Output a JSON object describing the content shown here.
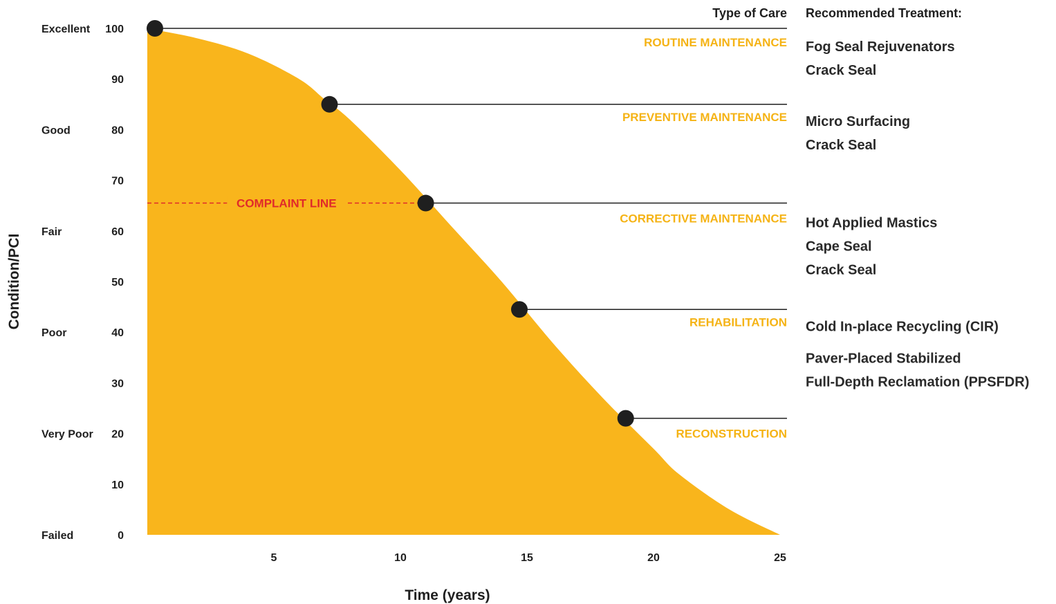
{
  "chart_data": {
    "type": "area",
    "xlabel": "Time (years)",
    "ylabel": "Condition/PCI",
    "xlim": [
      0,
      25
    ],
    "ylim": [
      0,
      100
    ],
    "x_ticks": [
      5,
      10,
      15,
      20,
      25
    ],
    "y_ticks": [
      0,
      10,
      20,
      30,
      40,
      50,
      60,
      70,
      80,
      90,
      100
    ],
    "fill_color": "#f9b51c",
    "curve": {
      "x": [
        0,
        2,
        4,
        6,
        7,
        8,
        10,
        12,
        14,
        16,
        18,
        20,
        21,
        23,
        25
      ],
      "y": [
        100,
        98,
        95,
        90,
        86,
        82,
        72,
        61,
        50,
        38,
        27,
        17,
        12,
        5,
        0
      ]
    },
    "condition_labels": [
      {
        "label": "Excellent",
        "pci": 100
      },
      {
        "label": "Good",
        "pci": 80
      },
      {
        "label": "Fair",
        "pci": 60
      },
      {
        "label": "Poor",
        "pci": 40
      },
      {
        "label": "Very Poor",
        "pci": 20
      },
      {
        "label": "Failed",
        "pci": 0
      }
    ],
    "complaint_line": {
      "label": "COMPLAINT LINE",
      "pci": 65.5,
      "color": "#e02a2a"
    },
    "header_type_of_care": "Type of Care",
    "header_treatment": "Recommended Treatment:",
    "care_levels": [
      {
        "point": [
          0.3,
          100
        ],
        "care": "ROUTINE MAINTENANCE",
        "treatments": [
          "Fog Seal Rejuvenators",
          "Crack Seal"
        ]
      },
      {
        "point": [
          7.2,
          85
        ],
        "care": "PREVENTIVE MAINTENANCE",
        "treatments": [
          "Micro Surfacing",
          "Crack Seal"
        ]
      },
      {
        "point": [
          11,
          65.5
        ],
        "care": "CORRECTIVE MAINTENANCE",
        "treatments": [
          "Hot Applied Mastics",
          "Cape Seal",
          "Crack Seal"
        ]
      },
      {
        "point": [
          14.7,
          44.5
        ],
        "care": "REHABILITATION",
        "treatments": [
          "Cold In-place Recycling (CIR)",
          "Paver-Placed Stabilized",
          "Full-Depth Reclamation (PPSFDR)"
        ]
      },
      {
        "point": [
          18.9,
          23
        ],
        "care": "RECONSTRUCTION",
        "treatments": []
      }
    ]
  }
}
